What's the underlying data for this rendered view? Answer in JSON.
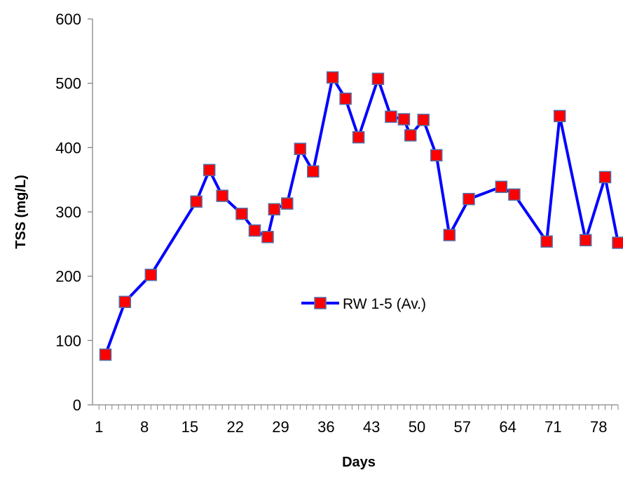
{
  "chart_data": {
    "type": "line",
    "title": "",
    "xlabel": "Days",
    "ylabel": "TSS (mg/L)",
    "ylim": [
      0,
      600
    ],
    "xlim": [
      0,
      81
    ],
    "y_ticks": [
      0,
      100,
      200,
      300,
      400,
      500,
      600
    ],
    "x_ticks": [
      1,
      8,
      15,
      22,
      29,
      36,
      43,
      50,
      57,
      64,
      71,
      78
    ],
    "grid": false,
    "legend_position": "center-right",
    "series": [
      {
        "name": "RW 1-5 (Av.)",
        "line_color": "#0000FF",
        "marker_color": "#FF0000",
        "marker_edge_color": "#4F6FA8",
        "marker": "square",
        "x": [
          2,
          5,
          9,
          16,
          18,
          20,
          23,
          25,
          27,
          28,
          30,
          32,
          34,
          37,
          39,
          41,
          44,
          46,
          48,
          49,
          51,
          53,
          55,
          58,
          63,
          65,
          70,
          72,
          76,
          79,
          81
        ],
        "y": [
          78,
          160,
          202,
          316,
          365,
          325,
          297,
          271,
          261,
          304,
          313,
          398,
          363,
          509,
          476,
          416,
          507,
          448,
          444,
          419,
          443,
          388,
          264,
          320,
          339,
          327,
          254,
          449,
          256,
          354,
          252
        ]
      }
    ]
  }
}
